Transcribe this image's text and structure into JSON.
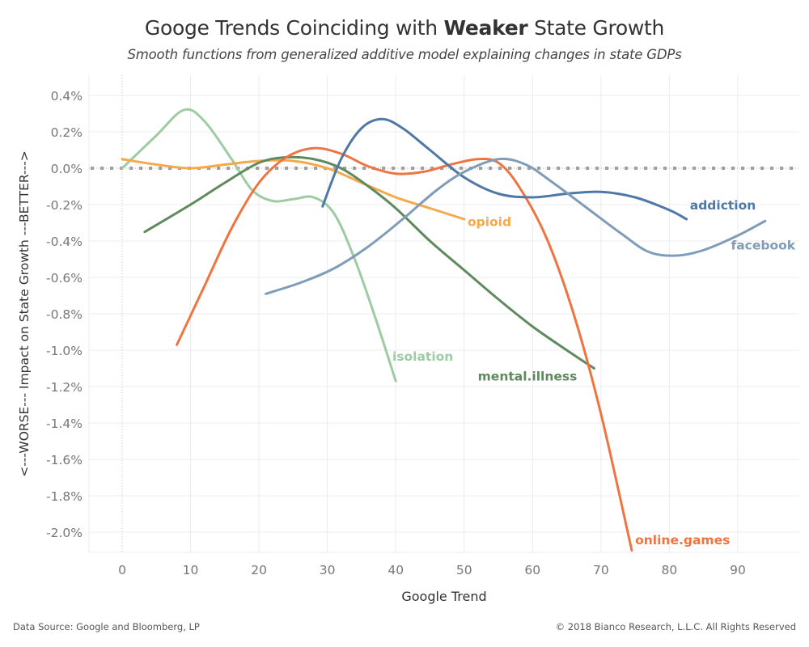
{
  "header": {
    "title_pre": "Googe Trends Coinciding with ",
    "title_bold": "Weaker",
    "title_post": " State Growth",
    "subtitle": "Smooth functions from generalized additive model explaining changes in state GDPs"
  },
  "footer": {
    "source": "Data Source: Google and Bloomberg, LP",
    "copyright": "© 2018 Bianco Research, L.L.C. All Rights Reserved"
  },
  "chart_data": {
    "type": "line",
    "title": "Googe Trends Coinciding with Weaker State Growth",
    "subtitle": "Smooth functions from generalized additive model explaining changes in state GDPs",
    "xlabel": "Google Trend",
    "ylabel": "<---WORSE--- Impact on State Growth ---BETTER--->",
    "xlim": [
      -5,
      99
    ],
    "ylim": [
      -2.1,
      0.5
    ],
    "x_ticks": [
      0,
      10,
      20,
      30,
      40,
      50,
      60,
      70,
      80,
      90
    ],
    "x_tick_labels": [
      "0",
      "10",
      "20",
      "30",
      "40",
      "50",
      "60",
      "70",
      "80",
      "90"
    ],
    "y_ticks": [
      0.4,
      0.2,
      0.0,
      -0.2,
      -0.4,
      -0.6,
      -0.8,
      -1.0,
      -1.2,
      -1.4,
      -1.6,
      -1.8,
      -2.0
    ],
    "y_tick_labels": [
      "0.4%",
      "0.2%",
      "0.0%",
      "-0.2%",
      "-0.4%",
      "-0.6%",
      "-0.8%",
      "-1.0%",
      "-1.2%",
      "-1.4%",
      "-1.6%",
      "-1.8%",
      "-2.0%"
    ],
    "grid": true,
    "reference_lines": [
      {
        "axis": "y",
        "value": 0.0,
        "style": "dotted"
      },
      {
        "axis": "x",
        "value": 0,
        "style": "dotted"
      }
    ],
    "legend": "inline labels at line ends",
    "series": [
      {
        "name": "isolation",
        "color": "#9dcca3",
        "x": [
          0,
          5,
          9,
          12,
          16,
          19,
          22,
          25,
          28,
          31,
          34,
          37,
          40
        ],
        "y": [
          0.0,
          0.18,
          0.32,
          0.26,
          0.05,
          -0.12,
          -0.18,
          -0.17,
          -0.16,
          -0.25,
          -0.5,
          -0.82,
          -1.17
        ]
      },
      {
        "name": "opioid",
        "color": "#f5a94a",
        "x": [
          0,
          5,
          10,
          15,
          20,
          25,
          30,
          35,
          40,
          45,
          50
        ],
        "y": [
          0.05,
          0.02,
          0.0,
          0.02,
          0.04,
          0.04,
          0.0,
          -0.08,
          -0.16,
          -0.22,
          -0.28
        ]
      },
      {
        "name": "mental.illness",
        "color": "#5e8a5e",
        "x": [
          3.3,
          10,
          15,
          20,
          24,
          28,
          32,
          36,
          40,
          45,
          50,
          55,
          60,
          65,
          69
        ],
        "y": [
          -0.35,
          -0.2,
          -0.08,
          0.03,
          0.06,
          0.05,
          0.0,
          -0.1,
          -0.22,
          -0.4,
          -0.56,
          -0.72,
          -0.87,
          -1.0,
          -1.1
        ]
      },
      {
        "name": "online.games",
        "color": "#ee7542",
        "x": [
          8,
          12,
          16,
          20,
          24,
          28,
          32,
          36,
          40,
          44,
          48,
          52,
          55,
          58,
          62,
          66,
          70,
          74.5
        ],
        "y": [
          -0.97,
          -0.65,
          -0.33,
          -0.08,
          0.06,
          0.11,
          0.08,
          0.01,
          -0.03,
          -0.02,
          0.02,
          0.05,
          0.03,
          -0.1,
          -0.38,
          -0.8,
          -1.35,
          -2.1
        ]
      },
      {
        "name": "addiction",
        "color": "#4e79a7",
        "x": [
          29.3,
          32,
          35,
          38,
          41,
          45,
          50,
          55,
          60,
          65,
          70,
          75,
          80,
          82.5
        ],
        "y": [
          -0.21,
          0.05,
          0.22,
          0.27,
          0.22,
          0.1,
          -0.05,
          -0.14,
          -0.16,
          -0.14,
          -0.13,
          -0.16,
          -0.23,
          -0.28
        ]
      },
      {
        "name": "facebook",
        "color": "#7f9db9",
        "x": [
          21,
          26,
          31,
          36,
          41,
          46,
          50,
          55,
          59,
          63,
          68,
          73,
          77,
          81,
          85,
          90,
          94
        ],
        "y": [
          -0.69,
          -0.63,
          -0.55,
          -0.43,
          -0.28,
          -0.12,
          -0.02,
          0.05,
          0.02,
          -0.08,
          -0.22,
          -0.36,
          -0.46,
          -0.48,
          -0.45,
          -0.37,
          -0.29
        ]
      }
    ],
    "annotations": [
      {
        "text": "addiction",
        "series": "addiction",
        "x": 83,
        "y": -0.2
      },
      {
        "text": "facebook",
        "series": "facebook",
        "x": 89,
        "y": -0.42
      },
      {
        "text": "opioid",
        "series": "opioid",
        "x": 50.5,
        "y": -0.29
      },
      {
        "text": "isolation",
        "series": "isolation",
        "x": 39.5,
        "y": -1.03
      },
      {
        "text": "mental.illness",
        "series": "mental.illness",
        "x": 52,
        "y": -1.14
      },
      {
        "text": "online.games",
        "series": "online.games",
        "x": 75,
        "y": -2.04
      }
    ]
  }
}
